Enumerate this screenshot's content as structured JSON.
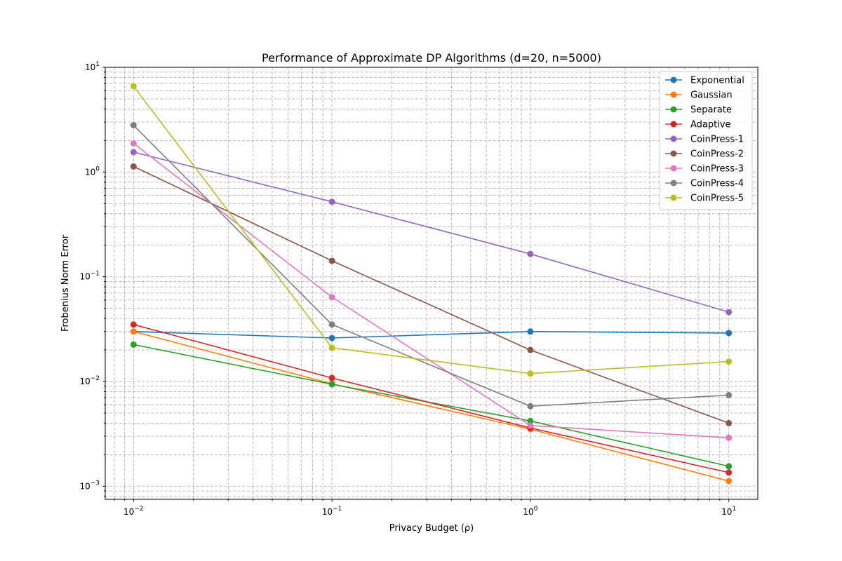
{
  "chart_data": {
    "type": "line",
    "title": "Performance of Approximate DP Algorithms (d=20, n=5000)",
    "xlabel": "Privacy Budget (ρ)",
    "ylabel": "Frobenius Norm Error",
    "xscale": "log",
    "yscale": "log",
    "x": [
      0.01,
      0.1,
      1,
      10
    ],
    "xlim": [
      0.0072,
      14
    ],
    "ylim": [
      0.00075,
      10
    ],
    "x_ticks": [
      {
        "value": 0.01,
        "base": "10",
        "exp": "−2"
      },
      {
        "value": 0.1,
        "base": "10",
        "exp": "−1"
      },
      {
        "value": 1,
        "base": "10",
        "exp": "0"
      },
      {
        "value": 10,
        "base": "10",
        "exp": "1"
      }
    ],
    "y_ticks": [
      {
        "value": 0.001,
        "base": "10",
        "exp": "−3"
      },
      {
        "value": 0.01,
        "base": "10",
        "exp": "−2"
      },
      {
        "value": 0.1,
        "base": "10",
        "exp": "−1"
      },
      {
        "value": 1,
        "base": "10",
        "exp": "0"
      },
      {
        "value": 10,
        "base": "10",
        "exp": "1"
      }
    ],
    "grid": true,
    "grid_minor": true,
    "legend_position": "top-right",
    "series": [
      {
        "name": "Exponential",
        "color": "#1f77b4",
        "values": [
          0.03,
          0.026,
          0.03,
          0.029
        ]
      },
      {
        "name": "Gaussian",
        "color": "#ff7f0e",
        "values": [
          0.03,
          0.0095,
          0.0035,
          0.00112
        ]
      },
      {
        "name": "Separate",
        "color": "#2ca02c",
        "values": [
          0.0225,
          0.0094,
          0.0042,
          0.00155
        ]
      },
      {
        "name": "Adaptive",
        "color": "#d62728",
        "values": [
          0.035,
          0.0108,
          0.0036,
          0.00135
        ]
      },
      {
        "name": "CoinPress-1",
        "color": "#9467bd",
        "values": [
          1.55,
          0.52,
          0.165,
          0.046
        ]
      },
      {
        "name": "CoinPress-2",
        "color": "#8c564b",
        "values": [
          1.13,
          0.142,
          0.02,
          0.004
        ]
      },
      {
        "name": "CoinPress-3",
        "color": "#e377c2",
        "values": [
          1.88,
          0.064,
          0.0038,
          0.0029
        ]
      },
      {
        "name": "CoinPress-4",
        "color": "#7f7f7f",
        "values": [
          2.8,
          0.035,
          0.0058,
          0.0074
        ]
      },
      {
        "name": "CoinPress-5",
        "color": "#bcbd22",
        "values": [
          6.6,
          0.021,
          0.0119,
          0.0155
        ]
      }
    ]
  }
}
